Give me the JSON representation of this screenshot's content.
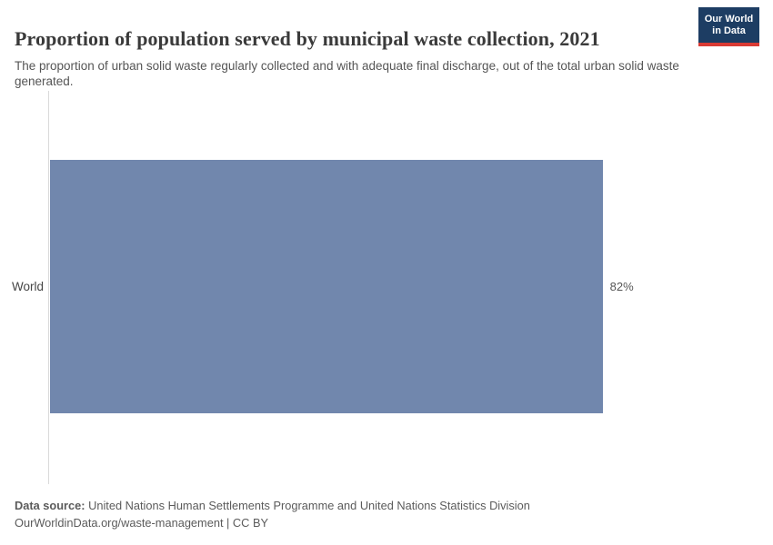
{
  "header": {
    "title": "Proportion of population served by municipal waste collection, 2021",
    "subtitle": "The proportion of urban solid waste regularly collected and with adequate final discharge, out of the total urban solid waste generated.",
    "logo_line1": "Our World",
    "logo_line2": "in Data"
  },
  "chart_data": {
    "type": "bar",
    "orientation": "horizontal",
    "title": "Proportion of population served by municipal waste collection, 2021",
    "categories": [
      "World"
    ],
    "values": [
      82
    ],
    "value_labels": [
      "82%"
    ],
    "unit": "%",
    "xlim": [
      0,
      100
    ],
    "grid": false,
    "legend": "none",
    "bar_color": "#7187ad"
  },
  "footer": {
    "source_label": "Data source:",
    "source_text": " United Nations Human Settlements Programme and United Nations Statistics Division",
    "license_line": "OurWorldinData.org/waste-management | CC BY"
  },
  "colors": {
    "bar": "#7187ad",
    "logo_bg": "#1d3d63",
    "logo_stripe": "#d93a34",
    "axis_line": "#dadada",
    "title_text": "#3a3a3a",
    "subtitle_text": "#555555",
    "footer_text": "#5b5b5b"
  }
}
